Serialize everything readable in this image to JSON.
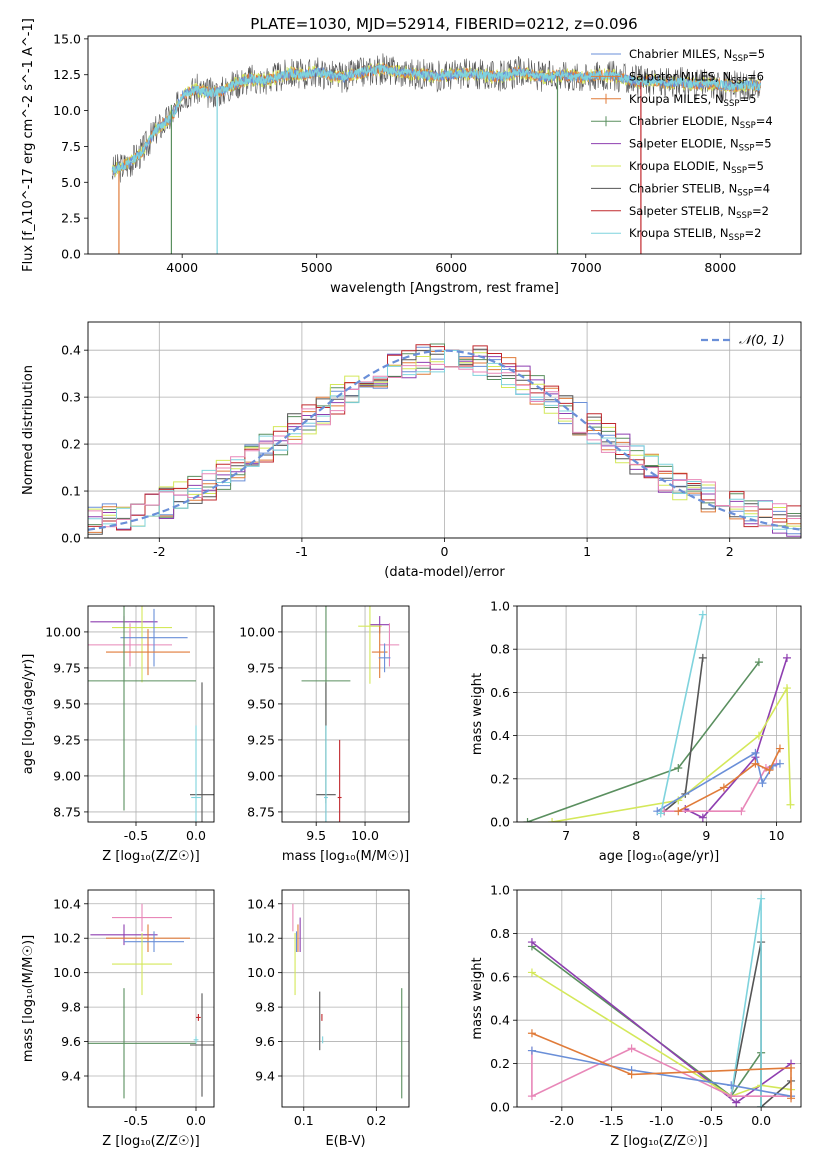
{
  "figure_title": "PLATE=1030, MJD=52914, FIBERID=0212, z=0.096",
  "colors": {
    "chabrier_miles": "#6a8fd8",
    "salpeter_miles": "#e07b39",
    "kroupa_miles": "#e07b39",
    "chabrier_elodie": "#5a8f5f",
    "salpeter_elodie": "#8e3fb0",
    "kroupa_elodie": "#d4e85a",
    "chabrier_stelib": "#555555",
    "salpeter_stelib": "#c0282d",
    "kroupa_stelib": "#7fd3dd",
    "pink": "#e887b8",
    "normal_curve": "#6a8fd8"
  },
  "chart_data": [
    {
      "id": "spectrum",
      "type": "line",
      "xlabel": "wavelength [Angstrom, rest frame]",
      "ylabel": "Flux [f_λ10^-17 erg cm^-2 s^-1 A^-1]",
      "xlim": [
        3300,
        8600
      ],
      "ylim": [
        0,
        15.2
      ],
      "xticks": [
        4000,
        5000,
        6000,
        7000,
        8000
      ],
      "yticks": [
        0.0,
        2.5,
        5.0,
        7.5,
        10.0,
        12.5,
        15.0
      ],
      "grid": false,
      "legend_position": "right",
      "legend": [
        {
          "label": "Chabrier MILES, N",
          "sub": "SSP",
          "suffix": "=5",
          "color": "#6a8fd8",
          "marker": false
        },
        {
          "label": "Salpeter MILES, N",
          "sub": "SSP",
          "suffix": "=6",
          "color": "#e07b39",
          "marker": false
        },
        {
          "label": "Kroupa MILES, N",
          "sub": "SSP",
          "suffix": "=5",
          "color": "#e07b39",
          "marker": true
        },
        {
          "label": "Chabrier ELODIE, N",
          "sub": "SSP",
          "suffix": "=4",
          "color": "#5a8f5f",
          "marker": true
        },
        {
          "label": "Salpeter ELODIE, N",
          "sub": "SSP",
          "suffix": "=5",
          "color": "#8e3fb0",
          "marker": false
        },
        {
          "label": "Kroupa ELODIE, N",
          "sub": "SSP",
          "suffix": "=5",
          "color": "#d4e85a",
          "marker": false
        },
        {
          "label": "Chabrier STELIB, N",
          "sub": "SSP",
          "suffix": "=4",
          "color": "#555555",
          "marker": false
        },
        {
          "label": "Salpeter STELIB, N",
          "sub": "SSP",
          "suffix": "=2",
          "color": "#c0282d",
          "marker": false
        },
        {
          "label": "Kroupa STELIB, N",
          "sub": "SSP",
          "suffix": "=2",
          "color": "#7fd3dd",
          "marker": false
        }
      ],
      "continuum": [
        [
          3480,
          5.8
        ],
        [
          3600,
          6.3
        ],
        [
          3700,
          7.1
        ],
        [
          3800,
          8.6
        ],
        [
          3900,
          9.4
        ],
        [
          3950,
          10.0
        ],
        [
          4000,
          11.1
        ],
        [
          4100,
          11.5
        ],
        [
          4200,
          11.2
        ],
        [
          4300,
          11.4
        ],
        [
          4400,
          11.9
        ],
        [
          4500,
          12.2
        ],
        [
          4600,
          12.1
        ],
        [
          4700,
          12.3
        ],
        [
          4800,
          12.6
        ],
        [
          4900,
          12.5
        ],
        [
          5000,
          12.7
        ],
        [
          5100,
          12.5
        ],
        [
          5200,
          12.3
        ],
        [
          5300,
          12.6
        ],
        [
          5400,
          12.8
        ],
        [
          5500,
          12.9
        ],
        [
          5600,
          12.7
        ],
        [
          5700,
          12.6
        ],
        [
          5800,
          12.5
        ],
        [
          5900,
          12.4
        ],
        [
          6000,
          12.5
        ],
        [
          6100,
          12.6
        ],
        [
          6200,
          12.5
        ],
        [
          6300,
          12.4
        ],
        [
          6400,
          12.4
        ],
        [
          6500,
          12.7
        ],
        [
          6600,
          12.5
        ],
        [
          6700,
          12.3
        ],
        [
          6800,
          12.5
        ],
        [
          6900,
          12.4
        ],
        [
          7000,
          12.3
        ],
        [
          7100,
          12.5
        ],
        [
          7200,
          12.4
        ],
        [
          7300,
          12.2
        ],
        [
          7400,
          12.0
        ],
        [
          7500,
          12.1
        ],
        [
          7600,
          11.9
        ],
        [
          7700,
          12.0
        ],
        [
          7800,
          11.8
        ],
        [
          7900,
          11.9
        ],
        [
          8000,
          11.8
        ],
        [
          8100,
          11.7
        ],
        [
          8200,
          11.8
        ],
        [
          8300,
          11.7
        ]
      ],
      "absorption_lines": [
        {
          "x": 3530,
          "depth": 5.8,
          "color": "#e07b39"
        },
        {
          "x": 3920,
          "depth": 10.4,
          "color": "#5a8f5f"
        },
        {
          "x": 4260,
          "depth": 11.4,
          "color": "#7fd3dd"
        },
        {
          "x": 6790,
          "depth": 12.4,
          "color": "#5a8f5f"
        },
        {
          "x": 7410,
          "depth": 12.0,
          "color": "#c0282d"
        }
      ]
    },
    {
      "id": "residuals",
      "type": "line",
      "xlabel": "(data-model)/error",
      "ylabel": "Normed distribution",
      "xlim": [
        -2.5,
        2.5
      ],
      "ylim": [
        0,
        0.46
      ],
      "xticks": [
        -2,
        -1,
        0,
        1,
        2
      ],
      "yticks": [
        0.0,
        0.1,
        0.2,
        0.3,
        0.4
      ],
      "grid": true,
      "legend_position": "top-right",
      "normal_legend": "𝒩(0, 1)",
      "bin_width": 0.1
    },
    {
      "id": "age_vs_Z",
      "type": "scatter",
      "xlabel": "Z [log₁₀(Z/Z☉)]",
      "ylabel": "age  [log₁₀(age/yr)]",
      "xlim": [
        -0.9,
        0.15
      ],
      "ylim": [
        8.68,
        10.18
      ],
      "xticks": [
        -0.5,
        0.0
      ],
      "yticks": [
        8.75,
        9.0,
        9.25,
        9.5,
        9.75,
        10.0
      ],
      "grid": true,
      "points": [
        {
          "x": -0.6,
          "y": 10.07,
          "xerr": 0.28,
          "yerr": 0.04,
          "color": "#8e3fb0"
        },
        {
          "x": -0.55,
          "y": 9.91,
          "xerr": 0.35,
          "yerr": 0.15,
          "color": "#e887b8"
        },
        {
          "x": -0.45,
          "y": 10.03,
          "xerr": 0.25,
          "yerr": 0.38,
          "color": "#d4e85a"
        },
        {
          "x": -0.35,
          "y": 9.96,
          "xerr": 0.28,
          "yerr": 0.2,
          "color": "#6a8fd8"
        },
        {
          "x": -0.4,
          "y": 9.86,
          "xerr": 0.35,
          "yerr": 0.16,
          "color": "#e07b39"
        },
        {
          "x": -0.6,
          "y": 9.66,
          "xerr": 0.6,
          "yerr": 0.9,
          "color": "#5a8f5f"
        },
        {
          "x": 0.05,
          "y": 8.87,
          "xerr": 0.1,
          "yerr": 0.78,
          "color": "#555555"
        },
        {
          "x": 0.0,
          "y": 8.85,
          "xerr": 0.04,
          "yerr": 0.5,
          "color": "#7fd3dd"
        }
      ]
    },
    {
      "id": "age_vs_mass",
      "type": "scatter",
      "xlabel": "mass [log₁₀(M/M☉)]",
      "ylabel": "",
      "xlim": [
        9.15,
        10.45
      ],
      "ylim": [
        8.68,
        10.18
      ],
      "xticks": [
        9.5,
        10.0
      ],
      "yticks": [
        8.75,
        9.0,
        9.25,
        9.5,
        9.75,
        10.0
      ],
      "grid": true,
      "points": [
        {
          "x": 10.15,
          "y": 10.05,
          "xerr": 0.1,
          "yerr": 0.06,
          "color": "#8e3fb0"
        },
        {
          "x": 10.25,
          "y": 9.91,
          "xerr": 0.1,
          "yerr": 0.15,
          "color": "#e887b8"
        },
        {
          "x": 10.05,
          "y": 10.04,
          "xerr": 0.12,
          "yerr": 0.4,
          "color": "#d4e85a"
        },
        {
          "x": 10.15,
          "y": 9.86,
          "xerr": 0.08,
          "yerr": 0.18,
          "color": "#e07b39"
        },
        {
          "x": 10.2,
          "y": 9.82,
          "xerr": 0.06,
          "yerr": 0.1,
          "color": "#6a8fd8"
        },
        {
          "x": 9.6,
          "y": 9.66,
          "xerr": 0.25,
          "yerr": 0.85,
          "color": "#5a8f5f"
        },
        {
          "x": 9.6,
          "y": 8.87,
          "xerr": 0.1,
          "yerr": 0.78,
          "color": "#555555"
        },
        {
          "x": 9.6,
          "y": 8.85,
          "xerr": 0.02,
          "yerr": 0.5,
          "color": "#7fd3dd"
        },
        {
          "x": 9.74,
          "y": 8.85,
          "xerr": 0.02,
          "yerr": 0.4,
          "color": "#c0282d"
        }
      ]
    },
    {
      "id": "massweight_vs_age",
      "type": "line",
      "xlabel": "age  [log₁₀(age/yr)]",
      "ylabel": "mass weight",
      "xlim": [
        6.3,
        10.35
      ],
      "ylim": [
        0,
        1.0
      ],
      "xticks": [
        7,
        8,
        9,
        10
      ],
      "yticks": [
        0.0,
        0.2,
        0.4,
        0.6,
        0.8,
        1.0
      ],
      "grid": true,
      "series": [
        {
          "color": "#5a8f5f",
          "x": [
            6.45,
            8.6,
            9.75
          ],
          "y": [
            0.0,
            0.25,
            0.74
          ]
        },
        {
          "color": "#555555",
          "x": [
            8.4,
            8.7,
            8.95
          ],
          "y": [
            0.05,
            0.13,
            0.76
          ]
        },
        {
          "color": "#8e3fb0",
          "x": [
            8.7,
            8.95,
            9.7,
            10.15
          ],
          "y": [
            0.06,
            0.02,
            0.3,
            0.76
          ]
        },
        {
          "color": "#d4e85a",
          "x": [
            6.8,
            8.6,
            9.75,
            10.15,
            10.2
          ],
          "y": [
            0.0,
            0.1,
            0.4,
            0.62,
            0.08
          ]
        },
        {
          "color": "#e887b8",
          "x": [
            8.4,
            9.5,
            9.85,
            10.0
          ],
          "y": [
            0.05,
            0.05,
            0.25,
            0.27
          ]
        },
        {
          "color": "#6a8fd8",
          "x": [
            8.3,
            9.7,
            9.8,
            9.95,
            10.05
          ],
          "y": [
            0.05,
            0.32,
            0.18,
            0.26,
            0.27
          ]
        },
        {
          "color": "#e07b39",
          "x": [
            8.6,
            9.25,
            9.7,
            9.9,
            10.05
          ],
          "y": [
            0.05,
            0.16,
            0.27,
            0.24,
            0.34
          ]
        },
        {
          "color": "#7fd3dd",
          "x": [
            8.35,
            8.95
          ],
          "y": [
            0.04,
            0.96
          ]
        }
      ]
    },
    {
      "id": "mass_vs_Z",
      "type": "scatter",
      "xlabel": "Z [log₁₀(Z/Z☉)]",
      "ylabel": "mass [log₁₀(M/M☉)]",
      "xlim": [
        -0.9,
        0.15
      ],
      "ylim": [
        9.22,
        10.48
      ],
      "xticks": [
        -0.5,
        0.0
      ],
      "yticks": [
        9.4,
        9.6,
        9.8,
        10.0,
        10.2,
        10.4
      ],
      "grid": true,
      "points": [
        {
          "x": -0.45,
          "y": 10.32,
          "xerr": 0.25,
          "yerr": 0.08,
          "color": "#e887b8"
        },
        {
          "x": -0.6,
          "y": 10.22,
          "xerr": 0.28,
          "yerr": 0.06,
          "color": "#8e3fb0"
        },
        {
          "x": -0.4,
          "y": 10.2,
          "xerr": 0.35,
          "yerr": 0.08,
          "color": "#e07b39"
        },
        {
          "x": -0.35,
          "y": 10.18,
          "xerr": 0.25,
          "yerr": 0.06,
          "color": "#6a8fd8"
        },
        {
          "x": -0.45,
          "y": 10.05,
          "xerr": 0.25,
          "yerr": 0.18,
          "color": "#d4e85a"
        },
        {
          "x": -0.6,
          "y": 9.59,
          "xerr": 0.6,
          "yerr": 0.32,
          "color": "#5a8f5f"
        },
        {
          "x": 0.05,
          "y": 9.58,
          "xerr": 0.1,
          "yerr": 0.3,
          "color": "#555555"
        },
        {
          "x": 0.02,
          "y": 9.74,
          "xerr": 0.02,
          "yerr": 0.02,
          "color": "#c0282d"
        },
        {
          "x": 0.0,
          "y": 9.61,
          "xerr": 0.02,
          "yerr": 0.02,
          "color": "#7fd3dd"
        }
      ]
    },
    {
      "id": "mass_vs_ebv",
      "type": "scatter",
      "xlabel": "E(B-V)",
      "ylabel": "",
      "xlim": [
        0.07,
        0.245
      ],
      "ylim": [
        9.22,
        10.48
      ],
      "xticks": [
        0.1,
        0.2
      ],
      "yticks": [
        9.4,
        9.6,
        9.8,
        10.0,
        10.2,
        10.4
      ],
      "grid": true,
      "points": [
        {
          "x": 0.085,
          "y": 10.32,
          "xerr": 0.0,
          "yerr": 0.08,
          "color": "#e887b8"
        },
        {
          "x": 0.095,
          "y": 10.22,
          "xerr": 0.0,
          "yerr": 0.1,
          "color": "#8e3fb0"
        },
        {
          "x": 0.088,
          "y": 10.05,
          "xerr": 0.0,
          "yerr": 0.18,
          "color": "#d4e85a"
        },
        {
          "x": 0.09,
          "y": 10.18,
          "xerr": 0.0,
          "yerr": 0.06,
          "color": "#6a8fd8"
        },
        {
          "x": 0.092,
          "y": 10.2,
          "xerr": 0.0,
          "yerr": 0.08,
          "color": "#e07b39"
        },
        {
          "x": 0.235,
          "y": 9.59,
          "xerr": 0.0,
          "yerr": 0.32,
          "color": "#5a8f5f"
        },
        {
          "x": 0.122,
          "y": 9.72,
          "xerr": 0.0,
          "yerr": 0.17,
          "color": "#555555"
        },
        {
          "x": 0.125,
          "y": 9.74,
          "xerr": 0.0,
          "yerr": 0.02,
          "color": "#c0282d"
        },
        {
          "x": 0.126,
          "y": 9.61,
          "xerr": 0.0,
          "yerr": 0.02,
          "color": "#7fd3dd"
        }
      ]
    },
    {
      "id": "massweight_vs_Z",
      "type": "line",
      "xlabel": "Z [log₁₀(Z/Z☉)]",
      "ylabel": "mass weight",
      "xlim": [
        -2.45,
        0.4
      ],
      "ylim": [
        0,
        1.0
      ],
      "xticks": [
        -2.0,
        -1.5,
        -1.0,
        -0.5,
        0.0
      ],
      "yticks": [
        0.0,
        0.2,
        0.4,
        0.6,
        0.8,
        1.0
      ],
      "grid": true,
      "series": [
        {
          "color": "#5a8f5f",
          "x": [
            -2.3,
            -0.3,
            0.0,
            0.0
          ],
          "y": [
            0.74,
            0.05,
            0.25,
            0.0
          ]
        },
        {
          "color": "#8e3fb0",
          "x": [
            -2.3,
            -0.25,
            0.3
          ],
          "y": [
            0.76,
            0.02,
            0.2
          ]
        },
        {
          "color": "#d4e85a",
          "x": [
            -2.3,
            -0.3,
            0.0,
            0.3
          ],
          "y": [
            0.62,
            0.05,
            0.1,
            0.08
          ]
        },
        {
          "color": "#555555",
          "x": [
            -0.3,
            0.0,
            0.0,
            0.3
          ],
          "y": [
            0.05,
            0.76,
            0.0,
            0.12
          ]
        },
        {
          "color": "#7fd3dd",
          "x": [
            -0.3,
            0.0,
            0.0
          ],
          "y": [
            0.05,
            0.96,
            0.0
          ]
        },
        {
          "color": "#e887b8",
          "x": [
            -2.3,
            -2.3,
            -1.3,
            -0.3,
            0.3
          ],
          "y": [
            0.26,
            0.05,
            0.27,
            0.05,
            0.05
          ]
        },
        {
          "color": "#6a8fd8",
          "x": [
            -2.3,
            -1.3,
            -0.3,
            0.3
          ],
          "y": [
            0.26,
            0.17,
            0.1,
            0.05
          ]
        },
        {
          "color": "#e07b39",
          "x": [
            -2.3,
            -1.3,
            0.3,
            0.3
          ],
          "y": [
            0.34,
            0.15,
            0.18,
            0.04
          ]
        }
      ]
    }
  ]
}
